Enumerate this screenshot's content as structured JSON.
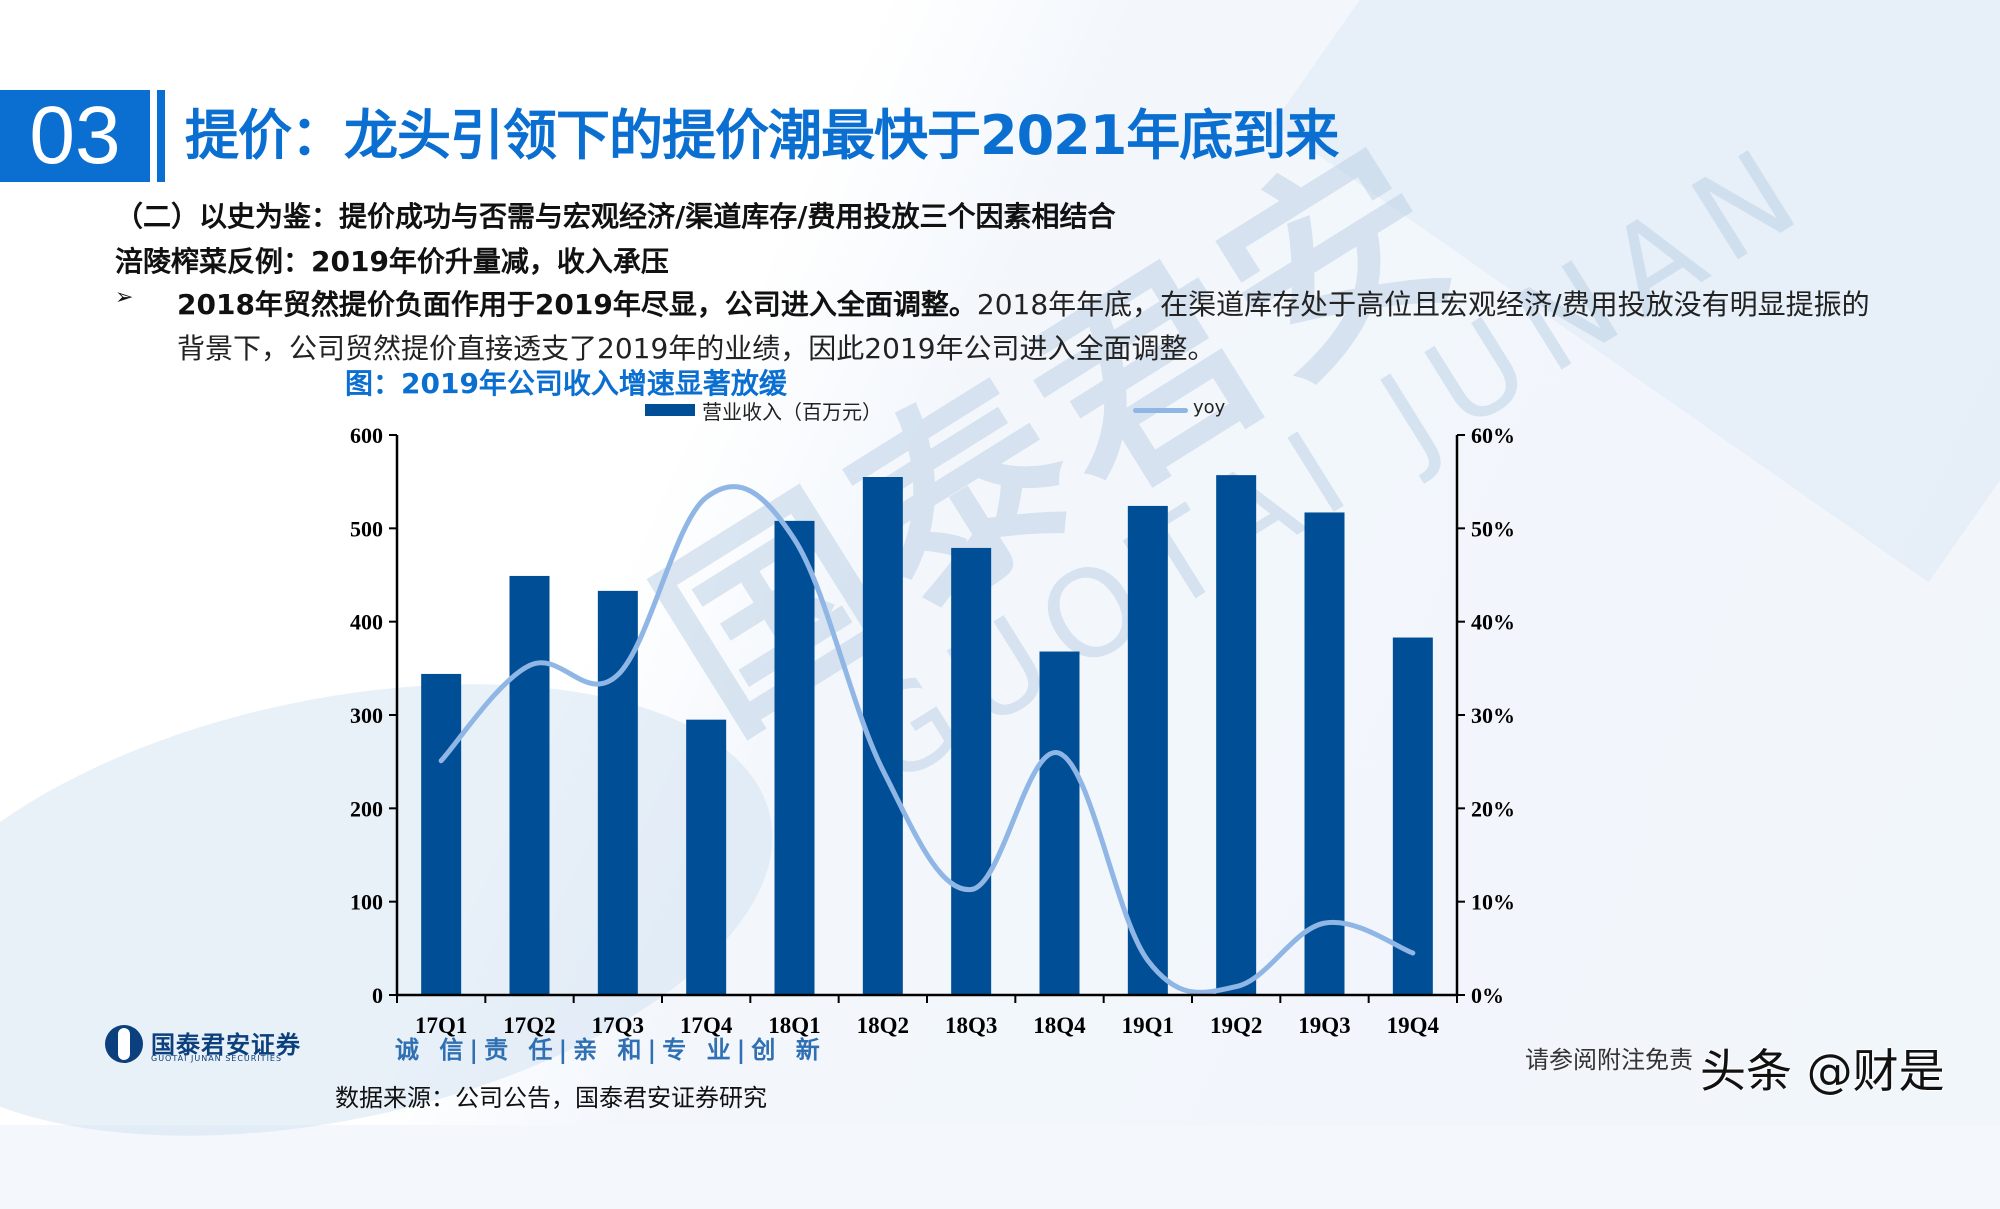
{
  "header": {
    "section_number": "03",
    "title": "提价：龙头引领下的提价潮最快于2021年底到来"
  },
  "subheadings": {
    "line1": "（二）以史为鉴：提价成功与否需与宏观经济/渠道库存/费用投放三个因素相结合",
    "line2": "涪陵榨菜反例：2019年价升量减，收入承压"
  },
  "bullet": {
    "marker": "➢",
    "bold_text": "2018年贸然提价负面作用于2019年尽显，公司进入全面调整。",
    "normal_text": "2018年年底，在渠道库存处于高位且宏观经济/费用投放没有明显提振的背景下，公司贸然提价直接透支了2019年的业绩，因此2019年公司进入全面调整。"
  },
  "figure": {
    "title": "图：2019年公司收入增速显著放缓",
    "legend": {
      "bar_label": "营业收入（百万元）",
      "line_label": "yoy"
    }
  },
  "chart_data": {
    "type": "bar+line",
    "title": "图：2019年公司收入增速显著放缓",
    "categories": [
      "17Q1",
      "17Q2",
      "17Q3",
      "17Q4",
      "18Q1",
      "18Q2",
      "18Q3",
      "18Q4",
      "19Q1",
      "19Q2",
      "19Q3",
      "19Q4"
    ],
    "series": [
      {
        "name": "营业收入（百万元）",
        "type": "bar",
        "axis": "left",
        "color": "#004f96",
        "values": [
          344,
          449,
          433,
          295,
          508,
          555,
          479,
          368,
          524,
          557,
          517,
          383
        ]
      },
      {
        "name": "yoy",
        "type": "line",
        "axis": "right",
        "smooth": true,
        "color": "#8fb6e4",
        "values": [
          0.251,
          0.353,
          0.343,
          0.533,
          0.488,
          0.241,
          0.113,
          0.259,
          0.037,
          0.009,
          0.077,
          0.045
        ]
      }
    ],
    "left_axis": {
      "min": 0,
      "max": 600,
      "step": 100,
      "ticks": [
        "0",
        "100",
        "200",
        "300",
        "400",
        "500",
        "600"
      ]
    },
    "right_axis": {
      "min": 0,
      "max": 0.6,
      "step": 0.1,
      "ticks": [
        "0%",
        "10%",
        "20%",
        "30%",
        "40%",
        "50%",
        "60%"
      ]
    },
    "xlabel": "",
    "ylabel": "",
    "grid": false,
    "legend_position": "top"
  },
  "footer": {
    "logo_cn": "国泰君安证券",
    "logo_en": "GUOTAI JUNAN SECURITIES",
    "slogan": "诚 信|责 任|亲 和|专 业|创 新",
    "source": "数据来源：公司公告，国泰君安证券研究",
    "disclaimer": "请参阅附注免责",
    "watermark_overlay": "头条 @财是"
  },
  "background_watermark": {
    "cn": "国泰君安",
    "en": "GUOTAI JUNAN"
  },
  "colors": {
    "accent": "#0a6fd1",
    "bar": "#004f96",
    "line": "#8fb6e4"
  }
}
